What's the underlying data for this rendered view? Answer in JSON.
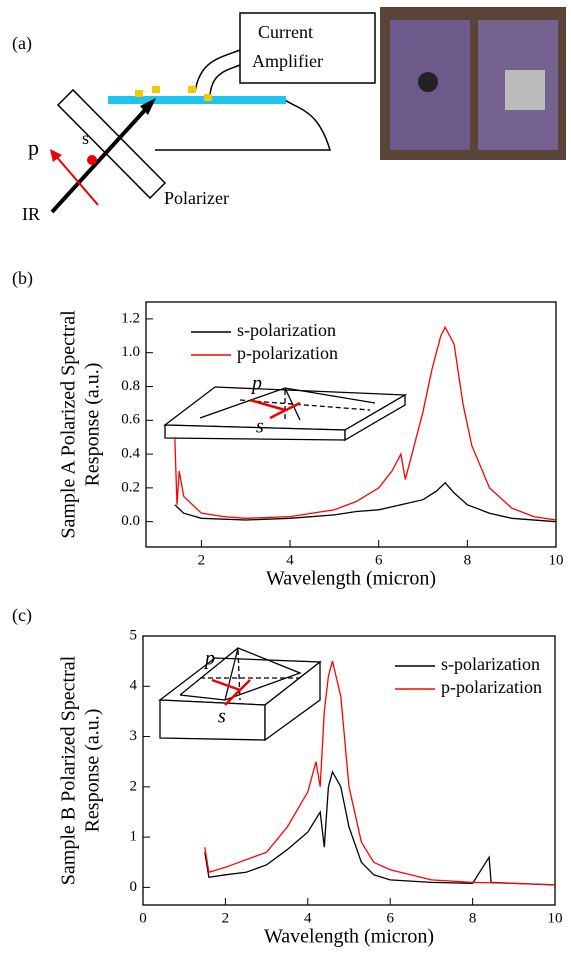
{
  "diagram": {
    "panel": "(a)",
    "amplifier": [
      "Current",
      "Amplifier"
    ],
    "s": "s",
    "p": "p",
    "ir": "IR",
    "polarizer": "Polarizer"
  },
  "chart_data": [
    {
      "type": "line",
      "panel": "(b)",
      "xlabel": "Wavelength (micron)",
      "ylabel": [
        "Sample A Polarized Spectral",
        "Response (a.u.)"
      ],
      "xlim": [
        0.75,
        10
      ],
      "xticks": [
        2,
        4,
        6,
        8,
        10
      ],
      "ylim": [
        -0.15,
        1.3
      ],
      "yticks": [
        {
          "value": 0,
          "label": "0.0"
        },
        0.2,
        0.4,
        0.6,
        0.8,
        {
          "value": 1,
          "label": "1.0"
        },
        1.2
      ],
      "legend": "upper left",
      "annotations": [
        "p",
        "s"
      ],
      "series": [
        {
          "name": "s-polarization",
          "color": "#000000",
          "x": [
            1.4,
            1.6,
            2,
            3,
            4,
            5,
            5.5,
            6,
            6.5,
            7,
            7.3,
            7.5,
            7.7,
            8,
            8.5,
            9,
            10
          ],
          "values": [
            0.1,
            0.05,
            0.02,
            0.01,
            0.02,
            0.04,
            0.06,
            0.07,
            0.1,
            0.13,
            0.18,
            0.23,
            0.17,
            0.1,
            0.05,
            0.02,
            0
          ]
        },
        {
          "name": "p-polarization",
          "color": "#ff0000",
          "x": [
            1.4,
            1.45,
            1.5,
            1.6,
            1.8,
            2,
            2.5,
            3,
            4,
            5,
            5.5,
            6,
            6.3,
            6.5,
            6.6,
            6.8,
            7,
            7.2,
            7.4,
            7.5,
            7.7,
            7.9,
            8.1,
            8.5,
            9,
            9.5,
            10
          ],
          "values": [
            0.5,
            0.1,
            0.3,
            0.15,
            0.1,
            0.05,
            0.03,
            0.02,
            0.03,
            0.07,
            0.12,
            0.2,
            0.3,
            0.4,
            0.25,
            0.45,
            0.65,
            0.9,
            1.1,
            1.15,
            1.05,
            0.7,
            0.45,
            0.2,
            0.08,
            0.03,
            0.01
          ]
        }
      ]
    },
    {
      "type": "line",
      "panel": "(c)",
      "xlabel": "Wavelength (micron)",
      "ylabel": [
        "Sample B Polarized Spectral",
        "Response (a.u.)"
      ],
      "xlim": [
        0,
        10
      ],
      "xticks": [
        0,
        2,
        4,
        6,
        8,
        10
      ],
      "ylim": [
        -0.35,
        5
      ],
      "yticks": [
        0,
        1,
        2,
        3,
        4,
        5
      ],
      "legend": "upper right",
      "annotations": [
        "p",
        "s"
      ],
      "series": [
        {
          "name": "s-polarization",
          "color": "#000000",
          "x": [
            1.5,
            1.6,
            2,
            2.5,
            3,
            3.5,
            4,
            4.3,
            4.4,
            4.5,
            4.6,
            4.8,
            5,
            5.3,
            5.6,
            6,
            7,
            8,
            8.4,
            8.45,
            9,
            10
          ],
          "values": [
            0.7,
            0.2,
            0.25,
            0.3,
            0.45,
            0.75,
            1.1,
            1.5,
            0.8,
            2,
            2.3,
            2,
            1.2,
            0.5,
            0.25,
            0.15,
            0.1,
            0.08,
            0.6,
            0.1,
            0.08,
            0.05
          ]
        },
        {
          "name": "p-polarization",
          "color": "#ff0000",
          "x": [
            1.5,
            1.6,
            2,
            2.5,
            3,
            3.5,
            4,
            4.2,
            4.3,
            4.4,
            4.5,
            4.6,
            4.8,
            5,
            5.3,
            5.6,
            6,
            7,
            8,
            9,
            10
          ],
          "values": [
            0.8,
            0.3,
            0.4,
            0.55,
            0.7,
            1.2,
            1.9,
            2.5,
            2,
            3.5,
            4.2,
            4.5,
            3.8,
            2,
            0.9,
            0.5,
            0.35,
            0.15,
            0.1,
            0.08,
            0.05
          ]
        }
      ]
    }
  ]
}
